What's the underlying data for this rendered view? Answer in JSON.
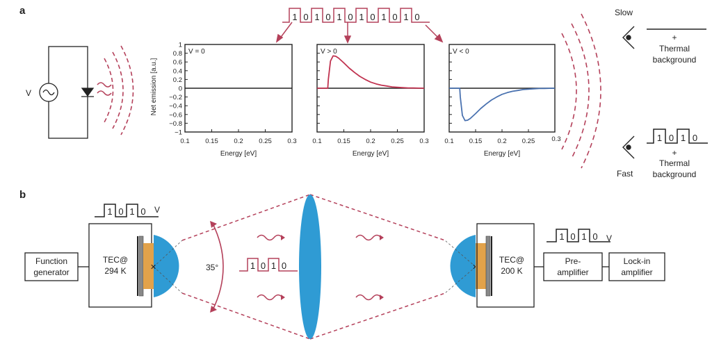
{
  "panel_a": {
    "letter": "a",
    "source_voltage_label": "V",
    "top_code": [
      "1",
      "0",
      "1",
      "0",
      "1",
      "0",
      "1",
      "0",
      "1",
      "0",
      "1",
      "0"
    ],
    "y_axis_label": "Net emission [a.u.]",
    "x_axis_label": "Energy [eV]",
    "y_ticks": [
      "1",
      "0.8",
      "0.6",
      "0.4",
      "0.2",
      "0",
      "−0.2",
      "−0.4",
      "−0.6",
      "−0.8",
      "−1"
    ],
    "x_ticks": [
      "0.1",
      "0.15",
      "0.2",
      "0.25",
      "0.3"
    ],
    "plots": [
      {
        "label": "V = 0"
      },
      {
        "label": "V > 0"
      },
      {
        "label": "V < 0"
      }
    ],
    "slow": {
      "label": "Slow",
      "plus": "+",
      "line1": "Thermal",
      "line2": "background"
    },
    "fast": {
      "label": "Fast",
      "code": [
        "1",
        "0",
        "1",
        "0"
      ],
      "plus": "+",
      "line1": "Thermal",
      "line2": "background"
    }
  },
  "panel_b": {
    "letter": "b",
    "left_code": [
      "1",
      "0",
      "1",
      "0"
    ],
    "left_code_v": "V",
    "function_generator": [
      "Function",
      "generator"
    ],
    "tec_left": [
      "TEC@",
      "294 K"
    ],
    "angle": "35°",
    "mid_code": [
      "1",
      "0",
      "1",
      "0"
    ],
    "right_code": [
      "1",
      "0",
      "1",
      "0"
    ],
    "right_code_v": "V",
    "tec_right": [
      "TEC@",
      "200 K"
    ],
    "preamp": [
      "Pre-",
      "amplifier"
    ],
    "lockin": [
      "Lock-in",
      "amplifier"
    ]
  },
  "chart_data": [
    {
      "type": "line",
      "title": "V = 0",
      "xlabel": "Energy [eV]",
      "ylabel": "Net emission [a.u.]",
      "xlim": [
        0.1,
        0.3
      ],
      "ylim": [
        -1,
        1
      ],
      "series": [
        {
          "color": "#222222",
          "x": [
            0.1,
            0.3
          ],
          "y": [
            0,
            0
          ]
        }
      ]
    },
    {
      "type": "line",
      "title": "V > 0",
      "xlabel": "Energy [eV]",
      "xlim": [
        0.1,
        0.3
      ],
      "ylim": [
        -1,
        1
      ],
      "series": [
        {
          "color": "#c0324f",
          "x": [
            0.1,
            0.12,
            0.121,
            0.125,
            0.13,
            0.135,
            0.14,
            0.15,
            0.16,
            0.17,
            0.18,
            0.19,
            0.2,
            0.21,
            0.22,
            0.23,
            0.24,
            0.25,
            0.26,
            0.27,
            0.28,
            0.29,
            0.3
          ],
          "y": [
            0,
            0,
            0.2,
            0.62,
            0.74,
            0.73,
            0.69,
            0.58,
            0.46,
            0.36,
            0.27,
            0.2,
            0.14,
            0.1,
            0.07,
            0.05,
            0.03,
            0.02,
            0.012,
            0.007,
            0.004,
            0.002,
            0
          ]
        }
      ]
    },
    {
      "type": "line",
      "title": "V < 0",
      "xlabel": "Energy [eV]",
      "xlim": [
        0.1,
        0.3
      ],
      "ylim": [
        -1,
        1
      ],
      "series": [
        {
          "color": "#4a72b0",
          "x": [
            0.1,
            0.12,
            0.121,
            0.125,
            0.13,
            0.135,
            0.14,
            0.15,
            0.16,
            0.17,
            0.18,
            0.19,
            0.2,
            0.21,
            0.22,
            0.23,
            0.24,
            0.25,
            0.26,
            0.27,
            0.28,
            0.29,
            0.3
          ],
          "y": [
            0,
            0,
            -0.2,
            -0.62,
            -0.74,
            -0.73,
            -0.69,
            -0.58,
            -0.46,
            -0.36,
            -0.27,
            -0.2,
            -0.14,
            -0.1,
            -0.07,
            -0.05,
            -0.03,
            -0.02,
            -0.012,
            -0.007,
            -0.004,
            -0.002,
            0
          ]
        }
      ]
    }
  ],
  "colors": {
    "signal": "#b4405a",
    "lens": "#2f9bd4",
    "tec_pad": "#e2a24a",
    "line": "#222222"
  }
}
